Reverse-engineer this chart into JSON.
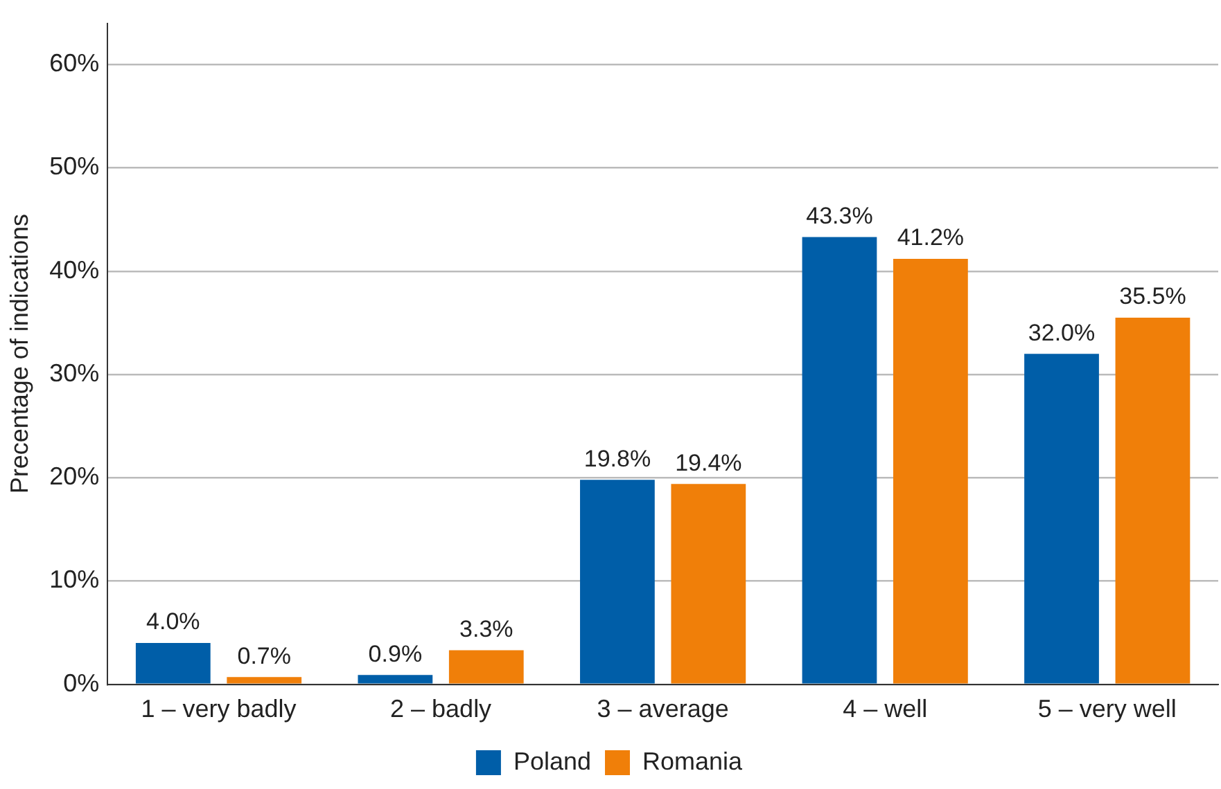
{
  "chart_data": {
    "type": "bar",
    "ylabel": "Precentage of indications",
    "categories": [
      "1 – very badly",
      "2 – badly",
      "3 – average",
      "4 – well",
      "5 – very well"
    ],
    "series": [
      {
        "name": "Poland",
        "color": "#005ea8",
        "values": [
          4.0,
          0.9,
          19.8,
          43.3,
          32.0
        ],
        "value_labels": [
          "4.0%",
          "0.9%",
          "19.8%",
          "43.3%",
          "32.0%"
        ]
      },
      {
        "name": "Romania",
        "color": "#f07f09",
        "values": [
          0.7,
          3.3,
          19.4,
          41.2,
          35.5
        ],
        "value_labels": [
          "0.7%",
          "3.3%",
          "19.4%",
          "41.2%",
          "35.5%"
        ]
      }
    ],
    "ylim": [
      0,
      64
    ],
    "yticks": [
      {
        "value": 0,
        "label": "0%"
      },
      {
        "value": 10,
        "label": "10%"
      },
      {
        "value": 20,
        "label": "20%"
      },
      {
        "value": 30,
        "label": "30%"
      },
      {
        "value": 40,
        "label": "40%"
      },
      {
        "value": 50,
        "label": "50%"
      },
      {
        "value": 60,
        "label": "60%"
      }
    ],
    "grid": "y",
    "legend": "bottom"
  }
}
